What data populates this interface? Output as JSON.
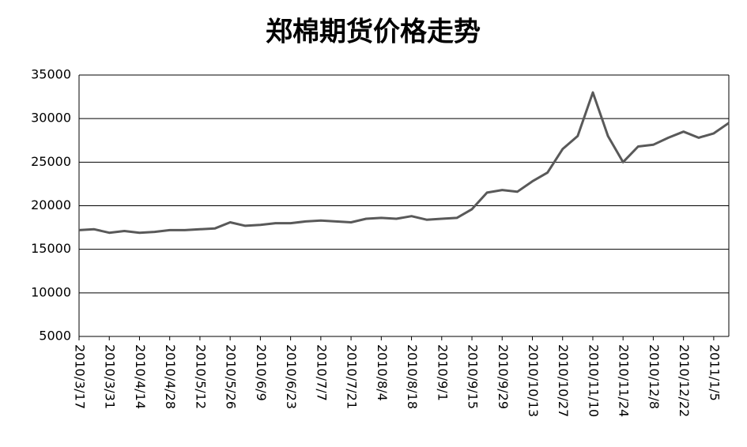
{
  "chart_data": {
    "type": "line",
    "title": "郑棉期货价格走势",
    "categories": [
      "2010/3/17",
      null,
      "2010/3/31",
      null,
      "2010/4/14",
      null,
      "2010/4/28",
      null,
      "2010/5/12",
      null,
      "2010/5/26",
      null,
      "2010/6/9",
      null,
      "2010/6/23",
      null,
      "2010/7/7",
      null,
      "2010/7/21",
      null,
      "2010/8/4",
      null,
      "2010/8/18",
      null,
      "2010/9/1",
      null,
      "2010/9/15",
      null,
      "2010/9/29",
      null,
      "2010/10/13",
      null,
      "2010/10/27",
      null,
      "2010/11/10",
      null,
      "2010/11/24",
      null,
      "2010/12/8",
      null,
      "2010/12/22",
      null,
      "2011/1/5",
      null
    ],
    "values": [
      17200,
      17300,
      16900,
      17100,
      16900,
      17000,
      17200,
      17200,
      17300,
      17400,
      18100,
      17700,
      17800,
      18000,
      18000,
      18200,
      18300,
      18200,
      18100,
      18500,
      18600,
      18500,
      18800,
      18400,
      18500,
      18600,
      19600,
      21500,
      21800,
      21600,
      22800,
      23800,
      26500,
      28000,
      33000,
      28000,
      25000,
      26800,
      27000,
      27800,
      28500,
      27800,
      28300,
      29500
    ],
    "color": "#595959",
    "ylim": [
      5000,
      35000
    ],
    "yticks": [
      5000,
      10000,
      15000,
      20000,
      25000,
      30000,
      35000
    ],
    "grid": true
  }
}
